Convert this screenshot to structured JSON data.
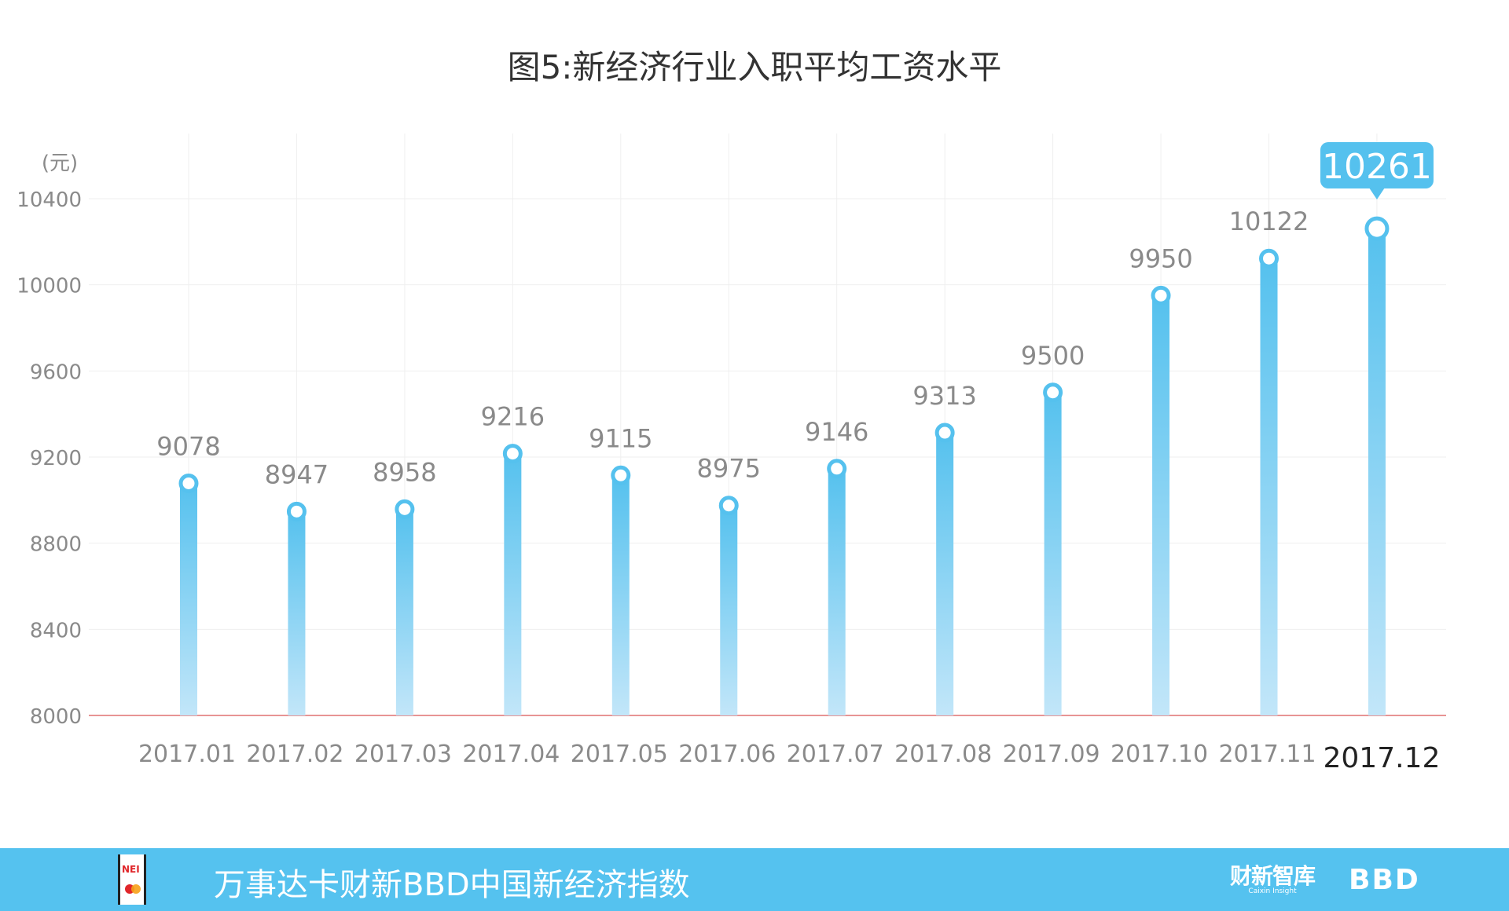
{
  "chart_data": {
    "type": "bar",
    "title": "图5:新经济行业入职平均工资水平",
    "ylabel": "(元)",
    "xlabel": "",
    "categories": [
      "2017.01",
      "2017.02",
      "2017.03",
      "2017.04",
      "2017.05",
      "2017.06",
      "2017.07",
      "2017.08",
      "2017.09",
      "2017.10",
      "2017.11",
      "2017.12"
    ],
    "values": [
      9078,
      8947,
      8958,
      9216,
      9115,
      8975,
      9146,
      9313,
      9500,
      9950,
      10122,
      10261
    ],
    "ylim": [
      8000,
      10400
    ],
    "yticks": [
      8000,
      8400,
      8800,
      9200,
      9600,
      10000,
      10400
    ],
    "grid": true,
    "highlight": {
      "category": "2017.12",
      "label": "10261"
    },
    "colors": {
      "bar_top": "#55c1ee",
      "bar_bottom": "#c2e6f9",
      "baseline": "#e07070",
      "grid": "#efefef",
      "label": "#8a8a8a",
      "callout": "#55c1ee"
    }
  },
  "footer": {
    "text": "万事达卡财新BBD中国新经济指数",
    "logo_nei": "NEI",
    "logo_caixin": "财新智库",
    "logo_caixin_en": "Caixin Insight",
    "logo_bbd": "BBD",
    "background": "#55c2ef"
  }
}
